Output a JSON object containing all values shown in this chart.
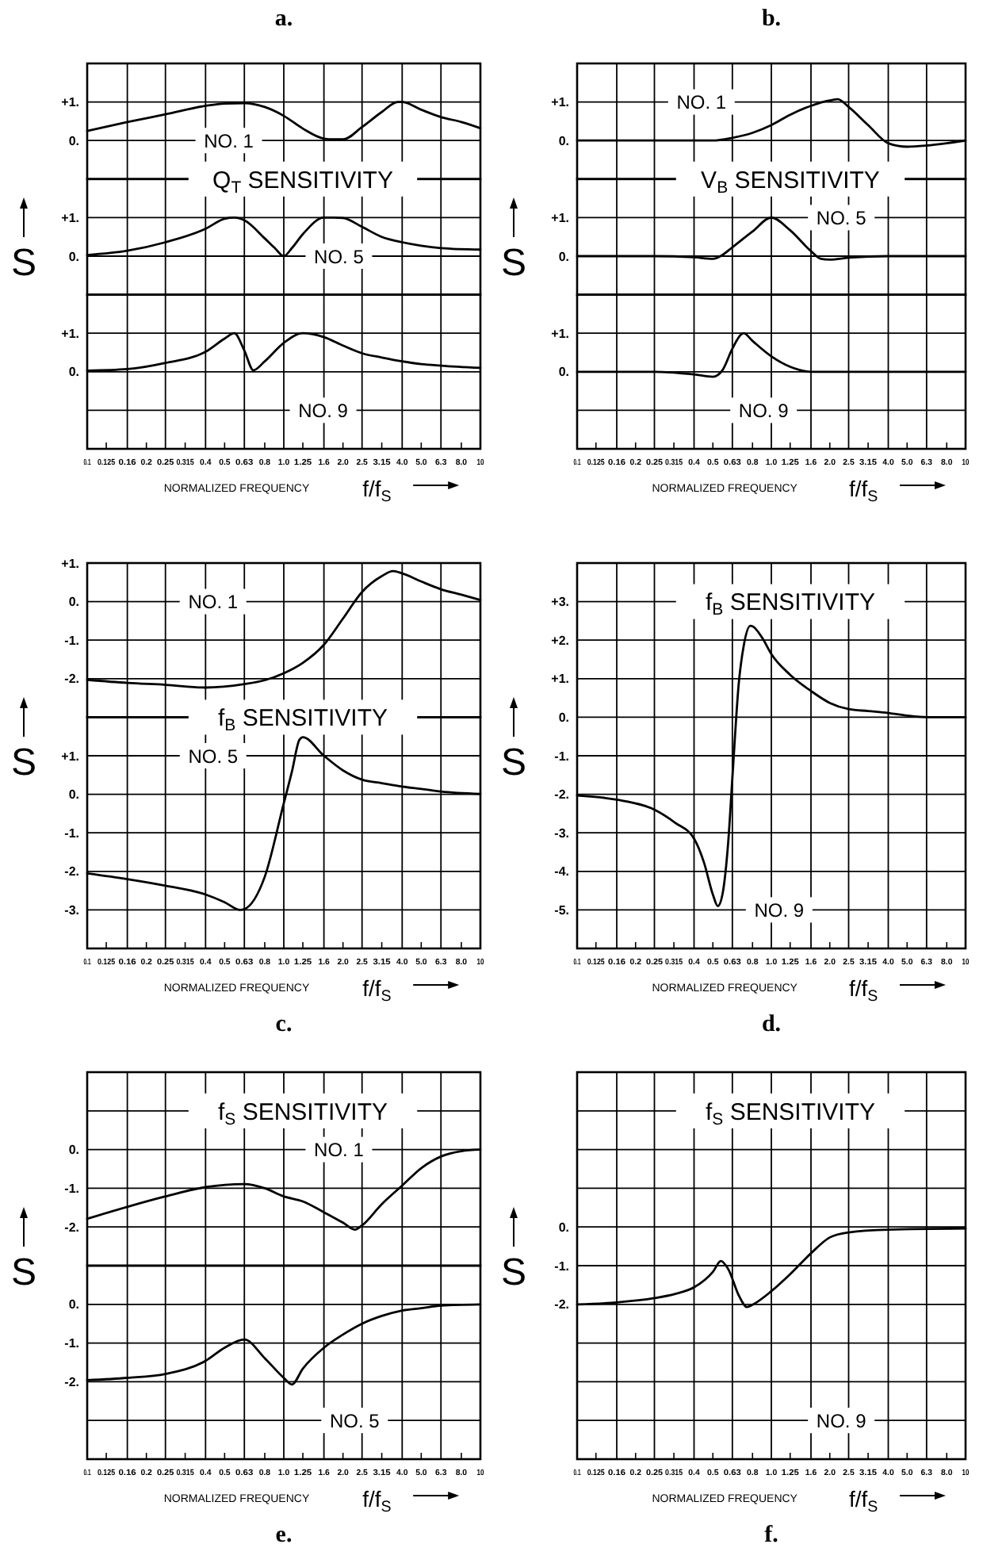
{
  "chart_data": [
    {
      "type": "line",
      "title": "a.",
      "subtitle": "Q$_{T}$ SENSITIVITY",
      "ylabel": "S",
      "log": "x",
      "grid": true,
      "tick_labels": "y",
      "xlim": [
        0.1,
        10
      ],
      "xticks": [
        {
          "value": 0.1,
          "label": null
        },
        {
          "value": 0.125,
          "label": null
        },
        {
          "value": 0.16,
          "label": null
        },
        {
          "value": 0.2,
          "label": null
        },
        {
          "value": 0.25,
          "label": null
        },
        {
          "value": 0.315,
          "label": null
        },
        {
          "value": 0.4,
          "label": null
        },
        {
          "value": 0.5,
          "label": null
        },
        {
          "value": 0.63,
          "label": null
        },
        {
          "value": 0.8,
          "label": null
        },
        {
          "value": 1,
          "label": null
        },
        {
          "value": 1.25,
          "label": null
        },
        {
          "value": 1.6,
          "label": null
        },
        {
          "value": 2,
          "label": null
        },
        {
          "value": 2.5,
          "label": null
        },
        {
          "value": 3.15,
          "label": null
        },
        {
          "value": 4,
          "label": null
        },
        {
          "value": 5,
          "label": null
        },
        {
          "value": 6.3,
          "label": null
        },
        {
          "value": 8,
          "label": null
        },
        {
          "value": 10,
          "label": null
        }
      ],
      "ylim": [
        -1,
        2
      ],
      "yticks": [
        {
          "value": 1,
          "label": "+1."
        },
        {
          "value": 0,
          "label": "0."
        }
      ],
      "series": [
        {
          "name": "NO. 1",
          "color": "#000000",
          "x": [
            0.1,
            0.16,
            0.25,
            0.4,
            0.5,
            0.63,
            0.8,
            1.0,
            1.25,
            1.6,
            1.8,
            2.0,
            2.5,
            3.15,
            3.8,
            4.0,
            5.0,
            6.3,
            8.0,
            10
          ],
          "values": [
            0.25,
            0.48,
            0.68,
            0.9,
            0.96,
            0.97,
            0.87,
            0.64,
            0.31,
            0.05,
            0.03,
            0.03,
            0.35,
            0.74,
            1.0,
            1.0,
            0.8,
            0.61,
            0.48,
            0.32
          ]
        }
      ]
    },
    {
      "type": "line",
      "log": "x",
      "grid": true,
      "tick_labels": "y",
      "xlim": [
        0.1,
        10
      ],
      "xticks": [
        {
          "value": 0.1,
          "label": null
        },
        {
          "value": 0.125,
          "label": null
        },
        {
          "value": 0.16,
          "label": null
        },
        {
          "value": 0.2,
          "label": null
        },
        {
          "value": 0.25,
          "label": null
        },
        {
          "value": 0.315,
          "label": null
        },
        {
          "value": 0.4,
          "label": null
        },
        {
          "value": 0.5,
          "label": null
        },
        {
          "value": 0.63,
          "label": null
        },
        {
          "value": 0.8,
          "label": null
        },
        {
          "value": 1,
          "label": null
        },
        {
          "value": 1.25,
          "label": null
        },
        {
          "value": 1.6,
          "label": null
        },
        {
          "value": 2,
          "label": null
        },
        {
          "value": 2.5,
          "label": null
        },
        {
          "value": 3.15,
          "label": null
        },
        {
          "value": 4,
          "label": null
        },
        {
          "value": 5,
          "label": null
        },
        {
          "value": 6.3,
          "label": null
        },
        {
          "value": 8,
          "label": null
        },
        {
          "value": 10,
          "label": null
        }
      ],
      "ylim": [
        -1,
        2
      ],
      "yticks": [
        {
          "value": 1,
          "label": "+1."
        },
        {
          "value": 0,
          "label": "0."
        }
      ],
      "series": [
        {
          "name": "NO. 5",
          "color": "#000000",
          "x": [
            0.1,
            0.16,
            0.25,
            0.4,
            0.5,
            0.56,
            0.63,
            0.8,
            0.9,
            1.0,
            1.1,
            1.25,
            1.6,
            1.8,
            2.0,
            2.5,
            3.15,
            4.0,
            5.0,
            6.3,
            10
          ],
          "values": [
            0.03,
            0.14,
            0.36,
            0.71,
            0.97,
            1.0,
            0.93,
            0.46,
            0.21,
            0.0,
            0.21,
            0.57,
            1.0,
            1.0,
            0.99,
            0.76,
            0.5,
            0.36,
            0.27,
            0.21,
            0.17
          ]
        }
      ]
    },
    {
      "type": "line",
      "xlabel": "NORMALIZED FREQUENCY",
      "annotations": [
        "f/f$_{S}$"
      ],
      "log": "x",
      "grid": true,
      "xlim": [
        0.1,
        10
      ],
      "xticks": [
        {
          "value": 0.1,
          "label": "0.1"
        },
        {
          "value": 0.125,
          "label": "0.125"
        },
        {
          "value": 0.16,
          "label": "0.16"
        },
        {
          "value": 0.2,
          "label": "0.2"
        },
        {
          "value": 0.25,
          "label": "0.25"
        },
        {
          "value": 0.315,
          "label": "0.315"
        },
        {
          "value": 0.4,
          "label": "0.4"
        },
        {
          "value": 0.5,
          "label": "0.5"
        },
        {
          "value": 0.63,
          "label": "0.63"
        },
        {
          "value": 0.8,
          "label": "0.8"
        },
        {
          "value": 1,
          "label": "1.0"
        },
        {
          "value": 1.25,
          "label": "1.25"
        },
        {
          "value": 1.6,
          "label": "1.6"
        },
        {
          "value": 2,
          "label": "2.0"
        },
        {
          "value": 2.5,
          "label": "2.5"
        },
        {
          "value": 3.15,
          "label": "3.15"
        },
        {
          "value": 4,
          "label": "4.0"
        },
        {
          "value": 5,
          "label": "5.0"
        },
        {
          "value": 6.3,
          "label": "6.3"
        },
        {
          "value": 8,
          "label": "8.0"
        },
        {
          "value": 10,
          "label": "10"
        }
      ],
      "ylim": [
        -2,
        2
      ],
      "yticks": [
        {
          "value": 1,
          "label": "+1."
        },
        {
          "value": 0,
          "label": "0."
        },
        {
          "value": -1,
          "label": null
        }
      ],
      "series": [
        {
          "name": "NO. 9",
          "color": "#000000",
          "x": [
            0.1,
            0.16,
            0.25,
            0.4,
            0.5,
            0.56,
            0.63,
            0.7,
            0.8,
            1.0,
            1.25,
            1.6,
            2.0,
            2.5,
            3.15,
            4.0,
            5.0,
            6.3,
            10
          ],
          "values": [
            0.03,
            0.07,
            0.23,
            0.52,
            0.86,
            1.0,
            0.55,
            0.04,
            0.27,
            0.75,
            1.0,
            0.9,
            0.68,
            0.48,
            0.37,
            0.27,
            0.2,
            0.16,
            0.1
          ]
        }
      ]
    },
    {
      "type": "line",
      "title": "b.",
      "subtitle": "V$_{B}$ SENSITIVITY",
      "ylabel": "S",
      "log": "x",
      "grid": true,
      "tick_labels": "y",
      "xlim": [
        0.1,
        10
      ],
      "xticks": [
        {
          "value": 0.1,
          "label": null
        },
        {
          "value": 0.125,
          "label": null
        },
        {
          "value": 0.16,
          "label": null
        },
        {
          "value": 0.2,
          "label": null
        },
        {
          "value": 0.25,
          "label": null
        },
        {
          "value": 0.315,
          "label": null
        },
        {
          "value": 0.4,
          "label": null
        },
        {
          "value": 0.5,
          "label": null
        },
        {
          "value": 0.63,
          "label": null
        },
        {
          "value": 0.8,
          "label": null
        },
        {
          "value": 1,
          "label": null
        },
        {
          "value": 1.25,
          "label": null
        },
        {
          "value": 1.6,
          "label": null
        },
        {
          "value": 2,
          "label": null
        },
        {
          "value": 2.5,
          "label": null
        },
        {
          "value": 3.15,
          "label": null
        },
        {
          "value": 4,
          "label": null
        },
        {
          "value": 5,
          "label": null
        },
        {
          "value": 6.3,
          "label": null
        },
        {
          "value": 8,
          "label": null
        },
        {
          "value": 10,
          "label": null
        }
      ],
      "ylim": [
        -1,
        2
      ],
      "yticks": [
        {
          "value": 1,
          "label": "+1."
        },
        {
          "value": 0,
          "label": "0."
        }
      ],
      "series": [
        {
          "name": "NO. 1",
          "color": "#000000",
          "x": [
            0.1,
            0.25,
            0.5,
            0.63,
            0.8,
            1.0,
            1.25,
            1.6,
            2.0,
            2.2,
            2.5,
            3.15,
            4.0,
            5.0,
            6.3,
            8.0,
            10
          ],
          "values": [
            0.0,
            0.0,
            0.0,
            0.07,
            0.2,
            0.4,
            0.67,
            0.9,
            1.04,
            1.07,
            0.87,
            0.4,
            -0.07,
            -0.16,
            -0.13,
            -0.07,
            0.0
          ]
        }
      ]
    },
    {
      "type": "line",
      "log": "x",
      "grid": true,
      "tick_labels": "y",
      "xlim": [
        0.1,
        10
      ],
      "xticks": [
        {
          "value": 0.1,
          "label": null
        },
        {
          "value": 0.125,
          "label": null
        },
        {
          "value": 0.16,
          "label": null
        },
        {
          "value": 0.2,
          "label": null
        },
        {
          "value": 0.25,
          "label": null
        },
        {
          "value": 0.315,
          "label": null
        },
        {
          "value": 0.4,
          "label": null
        },
        {
          "value": 0.5,
          "label": null
        },
        {
          "value": 0.63,
          "label": null
        },
        {
          "value": 0.8,
          "label": null
        },
        {
          "value": 1,
          "label": null
        },
        {
          "value": 1.25,
          "label": null
        },
        {
          "value": 1.6,
          "label": null
        },
        {
          "value": 2,
          "label": null
        },
        {
          "value": 2.5,
          "label": null
        },
        {
          "value": 3.15,
          "label": null
        },
        {
          "value": 4,
          "label": null
        },
        {
          "value": 5,
          "label": null
        },
        {
          "value": 6.3,
          "label": null
        },
        {
          "value": 8,
          "label": null
        },
        {
          "value": 10,
          "label": null
        }
      ],
      "ylim": [
        -1,
        2
      ],
      "yticks": [
        {
          "value": 1,
          "label": "+1."
        },
        {
          "value": 0,
          "label": "0."
        }
      ],
      "series": [
        {
          "name": "NO. 5",
          "color": "#000000",
          "x": [
            0.1,
            0.25,
            0.4,
            0.5,
            0.56,
            0.63,
            0.8,
            1.0,
            1.25,
            1.6,
            1.8,
            2.0,
            2.5,
            4.0,
            10
          ],
          "values": [
            0.0,
            0.0,
            -0.03,
            -0.07,
            0.03,
            0.23,
            0.64,
            1.0,
            0.67,
            0.13,
            -0.07,
            -0.09,
            -0.04,
            0.0,
            0.0
          ]
        }
      ]
    },
    {
      "type": "line",
      "xlabel": "NORMALIZED FREQUENCY",
      "annotations": [
        "f/f$_{S}$"
      ],
      "log": "x",
      "grid": true,
      "xlim": [
        0.1,
        10
      ],
      "xticks": [
        {
          "value": 0.1,
          "label": "0.1"
        },
        {
          "value": 0.125,
          "label": "0.125"
        },
        {
          "value": 0.16,
          "label": "0.16"
        },
        {
          "value": 0.2,
          "label": "0.2"
        },
        {
          "value": 0.25,
          "label": "0.25"
        },
        {
          "value": 0.315,
          "label": "0.315"
        },
        {
          "value": 0.4,
          "label": "0.4"
        },
        {
          "value": 0.5,
          "label": "0.5"
        },
        {
          "value": 0.63,
          "label": "0.63"
        },
        {
          "value": 0.8,
          "label": "0.8"
        },
        {
          "value": 1,
          "label": "1.0"
        },
        {
          "value": 1.25,
          "label": "1.25"
        },
        {
          "value": 1.6,
          "label": "1.6"
        },
        {
          "value": 2,
          "label": "2.0"
        },
        {
          "value": 2.5,
          "label": "2.5"
        },
        {
          "value": 3.15,
          "label": "3.15"
        },
        {
          "value": 4,
          "label": "4.0"
        },
        {
          "value": 5,
          "label": "5.0"
        },
        {
          "value": 6.3,
          "label": "6.3"
        },
        {
          "value": 8,
          "label": "8.0"
        },
        {
          "value": 10,
          "label": "10"
        }
      ],
      "ylim": [
        -2,
        2
      ],
      "yticks": [
        {
          "value": 1,
          "label": "+1."
        },
        {
          "value": 0,
          "label": "0."
        },
        {
          "value": -1,
          "label": null
        }
      ],
      "series": [
        {
          "name": "NO. 9",
          "color": "#000000",
          "x": [
            0.1,
            0.25,
            0.4,
            0.5,
            0.56,
            0.63,
            0.7,
            0.72,
            0.8,
            1.0,
            1.25,
            1.6,
            10
          ],
          "values": [
            0.0,
            0.0,
            -0.07,
            -0.13,
            0.04,
            0.6,
            0.97,
            1.0,
            0.8,
            0.4,
            0.13,
            0.0,
            0.0
          ]
        }
      ]
    },
    {
      "type": "line",
      "title": "c.",
      "subtitle": "f$_{B}$ SENSITIVITY",
      "ylabel": "S",
      "log": "x",
      "grid": true,
      "tick_labels": "y",
      "xlim": [
        0.1,
        10
      ],
      "xticks": [
        {
          "value": 0.1,
          "label": null
        },
        {
          "value": 0.125,
          "label": null
        },
        {
          "value": 0.16,
          "label": null
        },
        {
          "value": 0.2,
          "label": null
        },
        {
          "value": 0.25,
          "label": null
        },
        {
          "value": 0.315,
          "label": null
        },
        {
          "value": 0.4,
          "label": null
        },
        {
          "value": 0.5,
          "label": null
        },
        {
          "value": 0.63,
          "label": null
        },
        {
          "value": 0.8,
          "label": null
        },
        {
          "value": 1,
          "label": null
        },
        {
          "value": 1.25,
          "label": null
        },
        {
          "value": 1.6,
          "label": null
        },
        {
          "value": 2,
          "label": null
        },
        {
          "value": 2.5,
          "label": null
        },
        {
          "value": 3.15,
          "label": null
        },
        {
          "value": 4,
          "label": null
        },
        {
          "value": 5,
          "label": null
        },
        {
          "value": 6.3,
          "label": null
        },
        {
          "value": 8,
          "label": null
        },
        {
          "value": 10,
          "label": null
        }
      ],
      "ylim": [
        -3,
        1
      ],
      "yticks": [
        {
          "value": 1,
          "label": "+1."
        },
        {
          "value": 0,
          "label": "0."
        },
        {
          "value": -1,
          "label": "-1."
        },
        {
          "value": -2,
          "label": "-2."
        }
      ],
      "series": [
        {
          "name": "NO. 1",
          "color": "#000000",
          "x": [
            0.1,
            0.16,
            0.25,
            0.4,
            0.63,
            0.8,
            1.0,
            1.25,
            1.6,
            2.0,
            2.5,
            3.15,
            3.6,
            4.0,
            5.0,
            6.3,
            8.0,
            10
          ],
          "values": [
            -2.03,
            -2.11,
            -2.16,
            -2.23,
            -2.14,
            -2.04,
            -1.86,
            -1.59,
            -1.12,
            -0.44,
            0.25,
            0.66,
            0.79,
            0.73,
            0.52,
            0.32,
            0.18,
            0.04
          ]
        }
      ]
    },
    {
      "type": "line",
      "xlabel": "NORMALIZED FREQUENCY",
      "annotations": [
        "f/f$_{S}$"
      ],
      "log": "x",
      "grid": true,
      "xlim": [
        0.1,
        10
      ],
      "xticks": [
        {
          "value": 0.1,
          "label": "0.1"
        },
        {
          "value": 0.125,
          "label": "0.125"
        },
        {
          "value": 0.16,
          "label": "0.16"
        },
        {
          "value": 0.2,
          "label": "0.2"
        },
        {
          "value": 0.25,
          "label": "0.25"
        },
        {
          "value": 0.315,
          "label": "0.315"
        },
        {
          "value": 0.4,
          "label": "0.4"
        },
        {
          "value": 0.5,
          "label": "0.5"
        },
        {
          "value": 0.63,
          "label": "0.63"
        },
        {
          "value": 0.8,
          "label": "0.8"
        },
        {
          "value": 1,
          "label": "1.0"
        },
        {
          "value": 1.25,
          "label": "1.25"
        },
        {
          "value": 1.6,
          "label": "1.6"
        },
        {
          "value": 2,
          "label": "2.0"
        },
        {
          "value": 2.5,
          "label": "2.5"
        },
        {
          "value": 3.15,
          "label": "3.15"
        },
        {
          "value": 4,
          "label": "4.0"
        },
        {
          "value": 5,
          "label": "5.0"
        },
        {
          "value": 6.3,
          "label": "6.3"
        },
        {
          "value": 8,
          "label": "8.0"
        },
        {
          "value": 10,
          "label": "10"
        }
      ],
      "ylim": [
        -4,
        2
      ],
      "yticks": [
        {
          "value": 1,
          "label": "+1."
        },
        {
          "value": 0,
          "label": "0."
        },
        {
          "value": -1,
          "label": "-1."
        },
        {
          "value": -2,
          "label": "-2."
        },
        {
          "value": -3,
          "label": "-3."
        }
      ],
      "series": [
        {
          "name": "NO. 5",
          "color": "#000000",
          "x": [
            0.1,
            0.16,
            0.25,
            0.4,
            0.5,
            0.6,
            0.63,
            0.8,
            1.0,
            1.1,
            1.2,
            1.25,
            1.6,
            2.0,
            2.5,
            3.15,
            4.0,
            5.0,
            6.3,
            10
          ],
          "values": [
            -2.05,
            -2.2,
            -2.37,
            -2.6,
            -2.8,
            -3.0,
            -2.98,
            -2.14,
            -0.23,
            0.59,
            1.41,
            1.48,
            1.0,
            0.62,
            0.38,
            0.29,
            0.2,
            0.14,
            0.07,
            0.01
          ]
        }
      ]
    },
    {
      "type": "line",
      "title": "d.",
      "subtitle": "f$_{B}$ SENSITIVITY",
      "ylabel": "S",
      "xlabel": "NORMALIZED FREQUENCY",
      "annotations": [
        "f/f$_{S}$"
      ],
      "log": "x",
      "grid": true,
      "xlim": [
        0.1,
        10
      ],
      "xticks": [
        {
          "value": 0.1,
          "label": "0.1"
        },
        {
          "value": 0.125,
          "label": "0.125"
        },
        {
          "value": 0.16,
          "label": "0.16"
        },
        {
          "value": 0.2,
          "label": "0.2"
        },
        {
          "value": 0.25,
          "label": "0.25"
        },
        {
          "value": 0.315,
          "label": "0.315"
        },
        {
          "value": 0.4,
          "label": "0.4"
        },
        {
          "value": 0.5,
          "label": "0.5"
        },
        {
          "value": 0.63,
          "label": "0.63"
        },
        {
          "value": 0.8,
          "label": "0.8"
        },
        {
          "value": 1,
          "label": "1.0"
        },
        {
          "value": 1.25,
          "label": "1.25"
        },
        {
          "value": 1.6,
          "label": "1.6"
        },
        {
          "value": 2,
          "label": "2.0"
        },
        {
          "value": 2.5,
          "label": "2.5"
        },
        {
          "value": 3.15,
          "label": "3.15"
        },
        {
          "value": 4,
          "label": "4.0"
        },
        {
          "value": 5,
          "label": "5.0"
        },
        {
          "value": 6.3,
          "label": "6.3"
        },
        {
          "value": 8,
          "label": "8.0"
        },
        {
          "value": 10,
          "label": "10"
        }
      ],
      "ylim": [
        -6,
        4
      ],
      "yticks": [
        {
          "value": 3,
          "label": "+3."
        },
        {
          "value": 2,
          "label": "+2."
        },
        {
          "value": 1,
          "label": "+1."
        },
        {
          "value": 0,
          "label": "0."
        },
        {
          "value": -1,
          "label": "-1."
        },
        {
          "value": -2,
          "label": "-2."
        },
        {
          "value": -3,
          "label": "-3."
        },
        {
          "value": -4,
          "label": "-4."
        },
        {
          "value": -5,
          "label": "-5."
        }
      ],
      "series": [
        {
          "name": "NO. 9",
          "color": "#000000",
          "x": [
            0.1,
            0.16,
            0.25,
            0.32,
            0.4,
            0.45,
            0.5,
            0.53,
            0.56,
            0.6,
            0.63,
            0.68,
            0.72,
            0.78,
            0.8,
            0.9,
            1.0,
            1.25,
            1.6,
            2.0,
            2.5,
            3.15,
            4.0,
            5.0,
            6.3,
            10
          ],
          "values": [
            -2.03,
            -2.14,
            -2.4,
            -2.74,
            -3.15,
            -3.77,
            -4.6,
            -4.9,
            -4.6,
            -3.23,
            -1.58,
            0.89,
            1.84,
            2.37,
            2.36,
            2.05,
            1.64,
            1.1,
            0.68,
            0.37,
            0.21,
            0.16,
            0.11,
            0.04,
            0.0,
            0.0
          ]
        }
      ]
    },
    {
      "type": "line",
      "title": "e.",
      "subtitle": "f$_{S}$ SENSITIVITY",
      "ylabel": "S",
      "log": "x",
      "grid": true,
      "tick_labels": "y",
      "xlim": [
        0.1,
        10
      ],
      "xticks": [
        {
          "value": 0.1,
          "label": null
        },
        {
          "value": 0.125,
          "label": null
        },
        {
          "value": 0.16,
          "label": null
        },
        {
          "value": 0.2,
          "label": null
        },
        {
          "value": 0.25,
          "label": null
        },
        {
          "value": 0.315,
          "label": null
        },
        {
          "value": 0.4,
          "label": null
        },
        {
          "value": 0.5,
          "label": null
        },
        {
          "value": 0.63,
          "label": null
        },
        {
          "value": 0.8,
          "label": null
        },
        {
          "value": 1,
          "label": null
        },
        {
          "value": 1.25,
          "label": null
        },
        {
          "value": 1.6,
          "label": null
        },
        {
          "value": 2,
          "label": null
        },
        {
          "value": 2.5,
          "label": null
        },
        {
          "value": 3.15,
          "label": null
        },
        {
          "value": 4,
          "label": null
        },
        {
          "value": 5,
          "label": null
        },
        {
          "value": 6.3,
          "label": null
        },
        {
          "value": 8,
          "label": null
        },
        {
          "value": 10,
          "label": null
        }
      ],
      "ylim": [
        -3,
        2
      ],
      "yticks": [
        {
          "value": 1,
          "label": null
        },
        {
          "value": 0,
          "label": "0."
        },
        {
          "value": -1,
          "label": "-1."
        },
        {
          "value": -2,
          "label": "-2."
        }
      ],
      "series": [
        {
          "name": "NO. 1",
          "color": "#000000",
          "x": [
            0.1,
            0.16,
            0.25,
            0.4,
            0.63,
            0.8,
            1.0,
            1.25,
            1.6,
            2.0,
            2.3,
            2.5,
            3.15,
            4.0,
            5.0,
            6.3,
            8.0,
            10
          ],
          "values": [
            -1.79,
            -1.48,
            -1.21,
            -0.97,
            -0.89,
            -1.0,
            -1.21,
            -1.34,
            -1.62,
            -1.89,
            -2.07,
            -1.96,
            -1.41,
            -0.93,
            -0.48,
            -0.18,
            -0.04,
            0.0
          ]
        }
      ]
    },
    {
      "type": "line",
      "xlabel": "NORMALIZED FREQUENCY",
      "annotations": [
        "f/f$_{S}$"
      ],
      "log": "x",
      "grid": true,
      "xlim": [
        0.1,
        10
      ],
      "xticks": [
        {
          "value": 0.1,
          "label": "0.1"
        },
        {
          "value": 0.125,
          "label": "0.125"
        },
        {
          "value": 0.16,
          "label": "0.16"
        },
        {
          "value": 0.2,
          "label": "0.2"
        },
        {
          "value": 0.25,
          "label": "0.25"
        },
        {
          "value": 0.315,
          "label": "0.315"
        },
        {
          "value": 0.4,
          "label": "0.4"
        },
        {
          "value": 0.5,
          "label": "0.5"
        },
        {
          "value": 0.63,
          "label": "0.63"
        },
        {
          "value": 0.8,
          "label": "0.8"
        },
        {
          "value": 1,
          "label": "1.0"
        },
        {
          "value": 1.25,
          "label": "1.25"
        },
        {
          "value": 1.6,
          "label": "1.6"
        },
        {
          "value": 2,
          "label": "2.0"
        },
        {
          "value": 2.5,
          "label": "2.5"
        },
        {
          "value": 3.15,
          "label": "3.15"
        },
        {
          "value": 4,
          "label": "4.0"
        },
        {
          "value": 5,
          "label": "5.0"
        },
        {
          "value": 6.3,
          "label": "6.3"
        },
        {
          "value": 8,
          "label": "8.0"
        },
        {
          "value": 10,
          "label": "10"
        }
      ],
      "ylim": [
        -4,
        1
      ],
      "yticks": [
        {
          "value": 0,
          "label": "0."
        },
        {
          "value": -1,
          "label": "-1."
        },
        {
          "value": -2,
          "label": "-2."
        },
        {
          "value": -3,
          "label": null
        }
      ],
      "series": [
        {
          "name": "NO. 5",
          "color": "#000000",
          "x": [
            0.1,
            0.16,
            0.25,
            0.4,
            0.5,
            0.63,
            0.8,
            1.0,
            1.1,
            1.25,
            1.6,
            2.0,
            2.5,
            3.15,
            4.0,
            5.0,
            6.3,
            10
          ],
          "values": [
            -1.96,
            -1.9,
            -1.8,
            -1.46,
            -1.12,
            -0.91,
            -1.39,
            -1.9,
            -2.07,
            -1.66,
            -1.12,
            -0.78,
            -0.5,
            -0.3,
            -0.16,
            -0.1,
            -0.03,
            0.0
          ]
        }
      ]
    },
    {
      "type": "line",
      "title": "f.",
      "subtitle": "f$_{S}$ SENSITIVITY",
      "ylabel": "S",
      "xlabel": "NORMALIZED FREQUENCY",
      "annotations": [
        "f/f$_{S}$"
      ],
      "log": "x",
      "grid": true,
      "xlim": [
        0.1,
        10
      ],
      "xticks": [
        {
          "value": 0.1,
          "label": "0.1"
        },
        {
          "value": 0.125,
          "label": "0.125"
        },
        {
          "value": 0.16,
          "label": "0.16"
        },
        {
          "value": 0.2,
          "label": "0.2"
        },
        {
          "value": 0.25,
          "label": "0.25"
        },
        {
          "value": 0.315,
          "label": "0.315"
        },
        {
          "value": 0.4,
          "label": "0.4"
        },
        {
          "value": 0.5,
          "label": "0.5"
        },
        {
          "value": 0.63,
          "label": "0.63"
        },
        {
          "value": 0.8,
          "label": "0.8"
        },
        {
          "value": 1,
          "label": "1.0"
        },
        {
          "value": 1.25,
          "label": "1.25"
        },
        {
          "value": 1.6,
          "label": "1.6"
        },
        {
          "value": 2,
          "label": "2.0"
        },
        {
          "value": 2.5,
          "label": "2.5"
        },
        {
          "value": 3.15,
          "label": "3.15"
        },
        {
          "value": 4,
          "label": "4.0"
        },
        {
          "value": 5,
          "label": "5.0"
        },
        {
          "value": 6.3,
          "label": "6.3"
        },
        {
          "value": 8,
          "label": "8.0"
        },
        {
          "value": 10,
          "label": "10"
        }
      ],
      "ylim": [
        -6,
        4
      ],
      "yticks": [
        {
          "value": 3,
          "label": null
        },
        {
          "value": 2,
          "label": null
        },
        {
          "value": 1,
          "label": null
        },
        {
          "value": 0,
          "label": "0."
        },
        {
          "value": -1,
          "label": "-1."
        },
        {
          "value": -2,
          "label": "-2."
        },
        {
          "value": -3,
          "label": null
        },
        {
          "value": -4,
          "label": null
        },
        {
          "value": -5,
          "label": null
        }
      ],
      "series": [
        {
          "name": "NO. 9",
          "color": "#000000",
          "x": [
            0.1,
            0.16,
            0.25,
            0.32,
            0.4,
            0.5,
            0.55,
            0.6,
            0.68,
            0.75,
            0.8,
            1.0,
            1.25,
            1.6,
            2.0,
            2.5,
            4.0,
            10
          ],
          "values": [
            -2.0,
            -1.95,
            -1.84,
            -1.73,
            -1.56,
            -1.16,
            -0.88,
            -1.09,
            -1.77,
            -2.07,
            -2.01,
            -1.66,
            -1.22,
            -0.68,
            -0.27,
            -0.14,
            -0.07,
            -0.04
          ]
        }
      ]
    }
  ]
}
